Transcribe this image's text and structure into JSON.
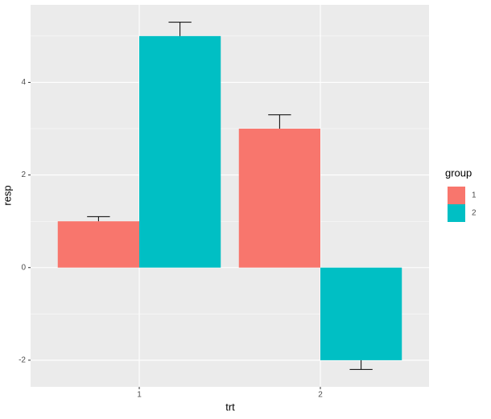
{
  "chart_data": {
    "type": "bar",
    "categories": [
      "1",
      "2"
    ],
    "series": [
      {
        "name": "1",
        "color": "#F8766D",
        "values": [
          1,
          3
        ],
        "errors": [
          0.1,
          0.3
        ]
      },
      {
        "name": "2",
        "color": "#00BFC4",
        "values": [
          5,
          -2
        ],
        "errors": [
          0.3,
          0.2
        ]
      }
    ],
    "x_label": "trt",
    "y_label": "resp",
    "legend_title": "group",
    "legend": "right",
    "ylim": [
      -2.575,
      5.675
    ],
    "yticks": [
      -2,
      0,
      2,
      4
    ],
    "grid": true
  }
}
